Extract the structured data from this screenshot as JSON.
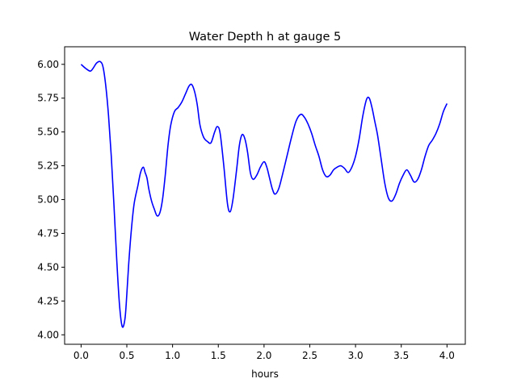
{
  "chart_data": {
    "type": "line",
    "title": "Water Depth h at gauge 5",
    "xlabel": "hours",
    "ylabel": "",
    "xlim": [
      -0.18,
      4.2
    ],
    "ylim": [
      3.93,
      6.13
    ],
    "xticks": [
      "0.0",
      "0.5",
      "1.0",
      "1.5",
      "2.0",
      "2.5",
      "3.0",
      "3.5",
      "4.0"
    ],
    "xtick_values": [
      0,
      0.5,
      1.0,
      1.5,
      2.0,
      2.5,
      3.0,
      3.5,
      4.0
    ],
    "yticks": [
      "4.00",
      "4.25",
      "4.50",
      "4.75",
      "5.00",
      "5.25",
      "5.50",
      "5.75",
      "6.00"
    ],
    "ytick_values": [
      4.0,
      4.25,
      4.5,
      4.75,
      5.0,
      5.25,
      5.5,
      5.75,
      6.0
    ],
    "grid": false,
    "series": [
      {
        "color": "#0000ff",
        "x": [
          0.0,
          0.05,
          0.1,
          0.13,
          0.17,
          0.21,
          0.24,
          0.27,
          0.3,
          0.33,
          0.36,
          0.39,
          0.42,
          0.45,
          0.48,
          0.5,
          0.52,
          0.55,
          0.58,
          0.62,
          0.65,
          0.68,
          0.7,
          0.72,
          0.74,
          0.77,
          0.8,
          0.83,
          0.86,
          0.89,
          0.92,
          0.95,
          0.98,
          1.02,
          1.06,
          1.1,
          1.14,
          1.18,
          1.21,
          1.24,
          1.27,
          1.3,
          1.34,
          1.38,
          1.42,
          1.46,
          1.49,
          1.52,
          1.56,
          1.6,
          1.63,
          1.66,
          1.7,
          1.73,
          1.76,
          1.79,
          1.82,
          1.85,
          1.88,
          1.92,
          1.96,
          2.0,
          2.03,
          2.06,
          2.09,
          2.12,
          2.16,
          2.2,
          2.25,
          2.3,
          2.35,
          2.4,
          2.44,
          2.48,
          2.52,
          2.56,
          2.6,
          2.64,
          2.68,
          2.72,
          2.76,
          2.8,
          2.84,
          2.88,
          2.92,
          2.96,
          3.0,
          3.04,
          3.08,
          3.12,
          3.15,
          3.18,
          3.21,
          3.24,
          3.28,
          3.32,
          3.36,
          3.4,
          3.44,
          3.48,
          3.52,
          3.56,
          3.6,
          3.64,
          3.68,
          3.72,
          3.76,
          3.8,
          3.84,
          3.88,
          3.92,
          3.96,
          4.0
        ],
        "y": [
          6.0,
          5.97,
          5.95,
          5.97,
          6.01,
          6.02,
          5.98,
          5.84,
          5.62,
          5.32,
          4.95,
          4.55,
          4.22,
          4.06,
          4.12,
          4.3,
          4.52,
          4.78,
          4.97,
          5.1,
          5.2,
          5.24,
          5.2,
          5.16,
          5.08,
          4.99,
          4.93,
          4.88,
          4.9,
          5.0,
          5.18,
          5.4,
          5.55,
          5.65,
          5.68,
          5.72,
          5.78,
          5.84,
          5.85,
          5.8,
          5.7,
          5.55,
          5.46,
          5.43,
          5.42,
          5.5,
          5.54,
          5.49,
          5.25,
          4.97,
          4.91,
          5.0,
          5.22,
          5.4,
          5.48,
          5.45,
          5.35,
          5.2,
          5.15,
          5.18,
          5.24,
          5.28,
          5.24,
          5.16,
          5.08,
          5.04,
          5.08,
          5.18,
          5.32,
          5.46,
          5.58,
          5.63,
          5.61,
          5.56,
          5.49,
          5.4,
          5.32,
          5.22,
          5.17,
          5.18,
          5.22,
          5.24,
          5.25,
          5.23,
          5.2,
          5.24,
          5.32,
          5.45,
          5.62,
          5.74,
          5.75,
          5.68,
          5.58,
          5.48,
          5.3,
          5.12,
          5.01,
          4.99,
          5.04,
          5.12,
          5.18,
          5.22,
          5.18,
          5.13,
          5.15,
          5.22,
          5.32,
          5.4,
          5.44,
          5.49,
          5.56,
          5.65,
          5.71
        ]
      }
    ]
  }
}
